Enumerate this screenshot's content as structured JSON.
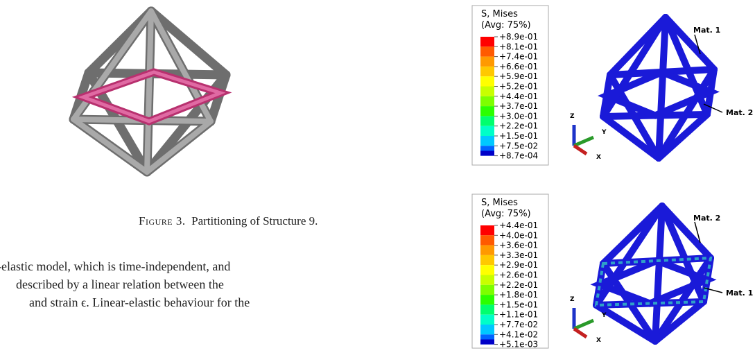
{
  "figure_caption": {
    "label": "Figure 3.",
    "text": "Partitioning of Structure 9."
  },
  "paragraph": {
    "lines": [
      "-elastic model, which is time-independent, and",
      "described by a linear relation between the",
      "and strain ϵ. Linear-elastic behaviour for the"
    ]
  },
  "plots": [
    {
      "legend": {
        "title": "S, Mises",
        "subtitle": "(Avg: 75%)",
        "values": [
          "+8.9e-01",
          "+8.1e-01",
          "+7.4e-01",
          "+6.6e-01",
          "+5.9e-01",
          "+5.2e-01",
          "+4.4e-01",
          "+3.7e-01",
          "+3.0e-01",
          "+2.2e-01",
          "+1.5e-01",
          "+7.5e-02",
          "+8.7e-04"
        ]
      },
      "axes": {
        "z": "Z",
        "y": "Y",
        "x": "X"
      },
      "annotations": [
        "Mat. 1",
        "Mat. 2"
      ]
    },
    {
      "legend": {
        "title": "S, Mises",
        "subtitle": "(Avg: 75%)",
        "values": [
          "+4.4e-01",
          "+4.0e-01",
          "+3.6e-01",
          "+3.3e-01",
          "+2.9e-01",
          "+2.6e-01",
          "+2.2e-01",
          "+1.8e-01",
          "+1.5e-01",
          "+1.1e-01",
          "+7.7e-02",
          "+4.1e-02",
          "+5.1e-03"
        ]
      },
      "axes": {
        "z": "Z",
        "y": "Y",
        "x": "X"
      },
      "annotations": [
        "Mat. 2",
        "Mat. 1"
      ]
    }
  ]
}
